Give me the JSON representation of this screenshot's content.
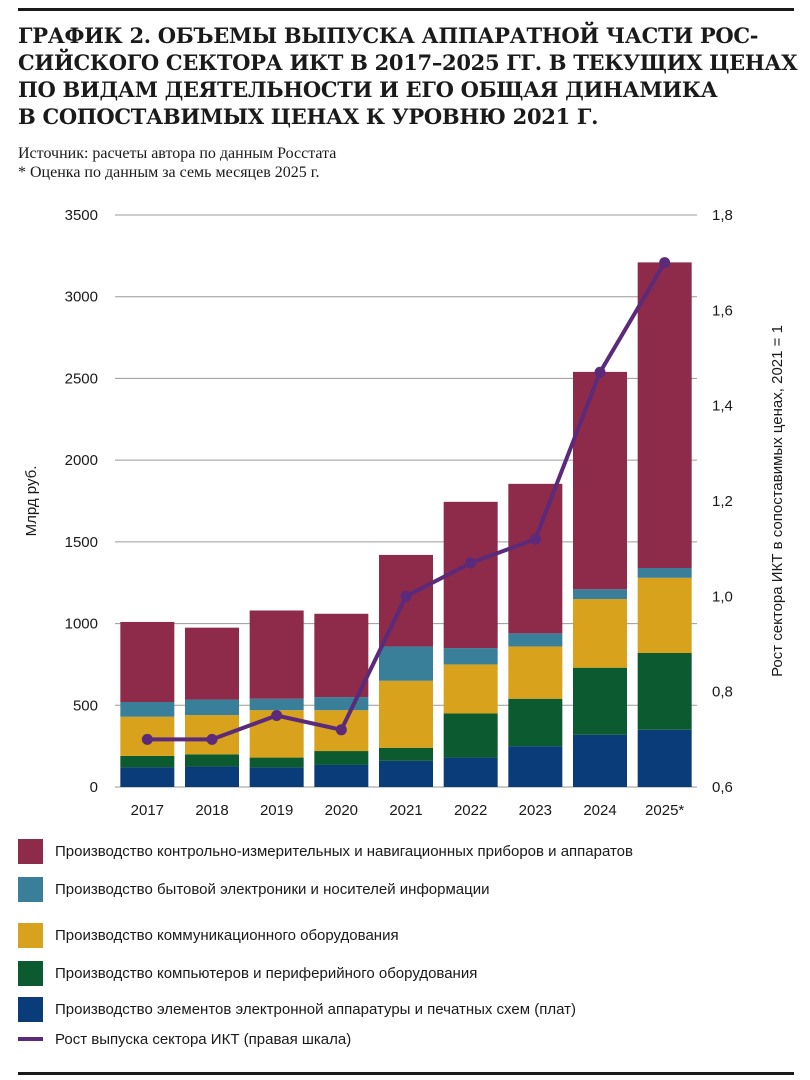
{
  "page": {
    "title_lines": [
      "ГРАФИК 2. ОБЪЕМЫ ВЫПУСКА АППАРАТНОЙ ЧАСТИ РОС-",
      "СИЙСКОГО СЕКТОРА ИКТ В 2017–2025 ГГ. В ТЕКУЩИХ ЦЕНАХ",
      "ПО ВИДАМ ДЕЯТЕЛЬНОСТИ И ЕГО ОБЩАЯ ДИНАМИКА",
      "В СОПОСТАВИМЫХ ЦЕНАХ К УРОВНЮ 2021 Г."
    ],
    "source": "Источник: расчеты автора по данным Росстата",
    "footnote": "* Оценка по данным за семь месяцев 2025 г."
  },
  "chart_data": {
    "type": "bar",
    "stacked": true,
    "categories": [
      "2017",
      "2018",
      "2019",
      "2020",
      "2021",
      "2022",
      "2023",
      "2024",
      "2025*"
    ],
    "ylabel": "Млрд руб.",
    "ylim": [
      0,
      3500
    ],
    "yticks": [
      0,
      500,
      1000,
      1500,
      2000,
      2500,
      3000,
      3500
    ],
    "y2label": "Рост сектора ИКТ в сопоставимых ценах, 2021 = 1",
    "y2lim": [
      0.6,
      1.8
    ],
    "y2ticks": [
      "0,6",
      "0,8",
      "1,0",
      "1,2",
      "1,4",
      "1,6",
      "1,8"
    ],
    "series": [
      {
        "name": "Производство элементов электронной аппаратуры и печатных схем (плат)",
        "color": "#0b3c7a",
        "values": [
          120,
          125,
          120,
          135,
          160,
          180,
          250,
          320,
          350
        ]
      },
      {
        "name": "Производство компьютеров и периферийного оборудования",
        "color": "#0b5a30",
        "values": [
          70,
          75,
          60,
          85,
          80,
          270,
          290,
          410,
          470
        ]
      },
      {
        "name": "Производство коммуникационного оборудования",
        "color": "#d9a21c",
        "values": [
          240,
          240,
          290,
          250,
          410,
          300,
          320,
          420,
          460
        ]
      },
      {
        "name": "Производство бытовой электроники и носителей информации",
        "color": "#3a7f99",
        "values": [
          90,
          95,
          70,
          80,
          210,
          100,
          80,
          60,
          60
        ]
      },
      {
        "name": "Производство контрольно-измерительных и навигационных приборов и аппаратов",
        "color": "#8e2a4a",
        "values": [
          490,
          440,
          540,
          510,
          560,
          895,
          915,
          1330,
          1870
        ]
      }
    ],
    "line": {
      "name": "Рост выпуска сектора ИКТ (правая шкала)",
      "color": "#5b2a7a",
      "axis": "right",
      "values": [
        0.7,
        0.7,
        0.75,
        0.72,
        1.0,
        1.07,
        1.12,
        1.47,
        1.7
      ]
    },
    "grid": true
  }
}
